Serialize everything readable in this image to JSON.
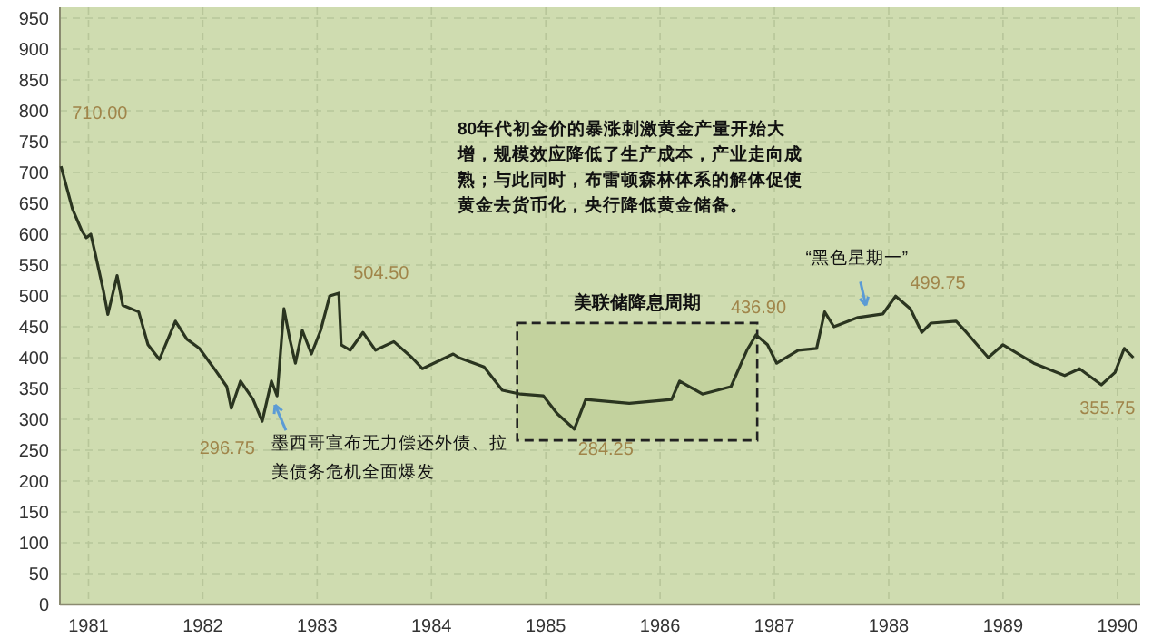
{
  "chart_data": {
    "type": "line",
    "x": [
      1980.76,
      1980.86,
      1980.94,
      1980.98,
      1981.02,
      1981.06,
      1981.13,
      1981.17,
      1981.25,
      1981.3,
      1981.44,
      1981.52,
      1981.62,
      1981.76,
      1981.86,
      1981.97,
      1982.1,
      1982.21,
      1982.25,
      1982.33,
      1982.44,
      1982.52,
      1982.6,
      1982.65,
      1982.71,
      1982.76,
      1982.81,
      1982.87,
      1982.95,
      1983.03,
      1983.11,
      1983.19,
      1983.21,
      1983.29,
      1983.4,
      1983.51,
      1983.67,
      1983.83,
      1983.92,
      1984.19,
      1984.24,
      1984.46,
      1984.62,
      1984.78,
      1984.98,
      1985.1,
      1985.25,
      1985.35,
      1985.73,
      1986.1,
      1986.17,
      1986.37,
      1986.62,
      1986.76,
      1986.84,
      1986.94,
      1987.02,
      1987.21,
      1987.37,
      1987.44,
      1987.52,
      1987.73,
      1987.95,
      1988.06,
      1988.19,
      1988.29,
      1988.37,
      1988.59,
      1988.68,
      1988.87,
      1989.0,
      1989.27,
      1989.54,
      1989.67,
      1989.86,
      1989.98,
      1990.06,
      1990.14
    ],
    "series": [
      {
        "color": "#2b3520",
        "values": [
          710,
          641,
          606,
          594,
          600,
          568,
          509,
          470,
          533,
          485,
          474,
          421,
          397,
          459,
          430,
          415,
          382,
          353,
          318,
          362,
          332,
          296.75,
          362,
          338,
          479,
          430,
          391,
          444,
          406,
          444,
          500,
          504.5,
          421,
          412,
          441,
          412,
          426,
          400,
          382,
          406,
          400,
          385,
          347,
          341,
          338,
          309,
          284.25,
          332,
          326,
          332,
          362,
          341,
          353,
          412,
          436.9,
          421,
          391,
          412,
          415,
          474,
          450,
          465,
          471,
          499.75,
          479,
          441,
          456,
          459,
          441,
          400,
          421,
          391,
          371,
          382,
          355.75,
          376,
          415,
          400
        ]
      }
    ],
    "xlim": [
      1980.75,
      1990.2
    ],
    "xticks": [
      1981,
      1982,
      1983,
      1984,
      1985,
      1986,
      1987,
      1988,
      1989,
      1990
    ],
    "ylim": [
      0,
      950
    ],
    "yticks": [
      0,
      50,
      100,
      150,
      200,
      250,
      300,
      350,
      400,
      450,
      500,
      550,
      600,
      650,
      700,
      750,
      800,
      850,
      900,
      950
    ],
    "grid": true,
    "line_style": "solid",
    "marker": "none",
    "bands": [
      {
        "axis": "x",
        "from": 1984.75,
        "to": 1986.85,
        "label": "美联储降息周期",
        "color": "#c3d29e"
      }
    ],
    "annotations": [
      {
        "text": "710.00",
        "x": 1980.76,
        "y": 710
      },
      {
        "text": "296.75",
        "x": 1982.52,
        "y": 296.75
      },
      {
        "text": "504.50",
        "x": 1983.19,
        "y": 504.5
      },
      {
        "text": "284.25",
        "x": 1985.25,
        "y": 284.25
      },
      {
        "text": "436.90",
        "x": 1986.84,
        "y": 436.9
      },
      {
        "text": "499.75",
        "x": 1988.06,
        "y": 499.75
      },
      {
        "text": "355.75",
        "x": 1989.86,
        "y": 355.75
      },
      {
        "text": "墨西哥宣布无力偿还外债、拉美债务危机全面爆发",
        "x": 1982.6,
        "y": 335
      },
      {
        "text": "“黑色星期一”",
        "x": 1987.8,
        "y": 470
      },
      "80年代初金价的暴涨刺激黄金产量开始大增，规模效应降低了生产成本，产业走向成熟；与此同时，布雷顿森林体系的解体促使黄金去货币化，央行降低黄金储备。"
    ]
  }
}
